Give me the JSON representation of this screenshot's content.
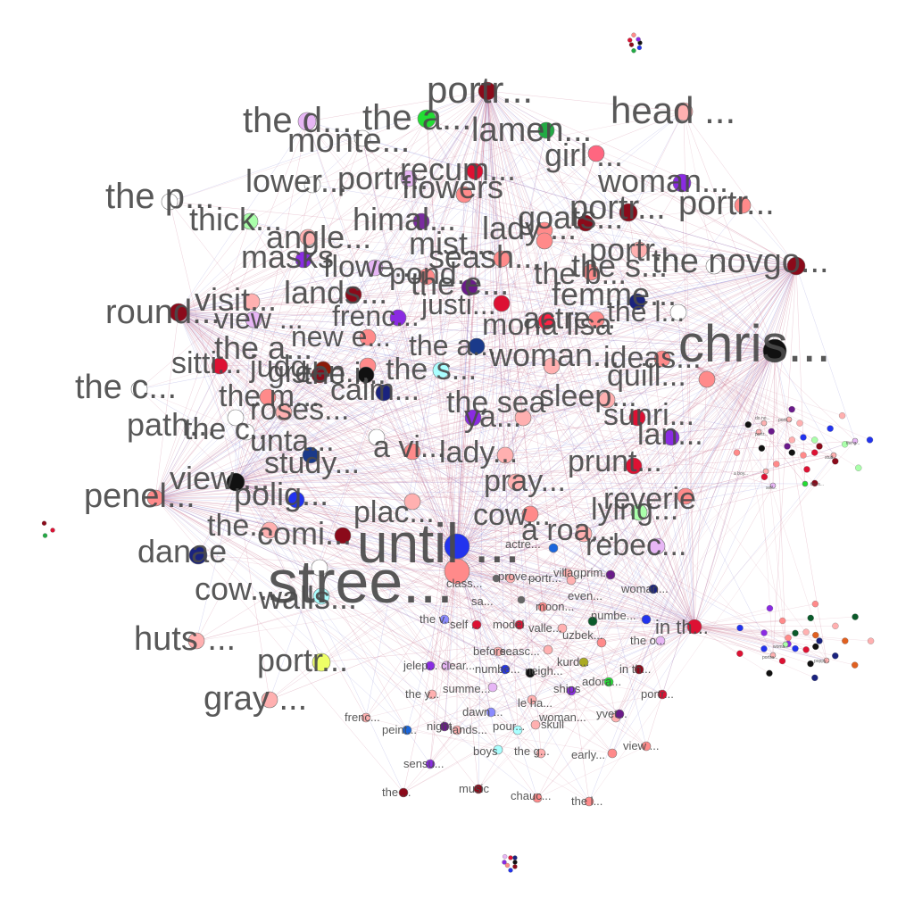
{
  "colors": {
    "edge_primary": "#c9738f",
    "edge_secondary": "#8a8ad6",
    "label": "#4a4a4a",
    "background": "#ffffff"
  },
  "graph": {
    "nodes": [
      {
        "label": "chris...",
        "size": "huge",
        "color": "#111111"
      },
      {
        "label": "stree...",
        "size": "huge",
        "color": "#ff8a8a"
      },
      {
        "label": "until ...",
        "size": "huge",
        "color": "#2233ee"
      },
      {
        "label": "portr...",
        "size": "large",
        "color": "#8b0a1a"
      },
      {
        "label": "head ...",
        "size": "large",
        "color": "#ffb0b0"
      },
      {
        "label": "the d...",
        "size": "large",
        "color": "#e7b6f5"
      },
      {
        "label": "the a...",
        "size": "large",
        "color": "#22dd33"
      },
      {
        "label": "lamen...",
        "size": "large",
        "color": "#22aa44"
      },
      {
        "label": "monte...",
        "size": "large",
        "color": "#ffffff"
      },
      {
        "label": "girl ...",
        "size": "large",
        "color": "#ff6680"
      },
      {
        "label": "recum...",
        "size": "large",
        "color": "#dd1133"
      },
      {
        "label": "lower...",
        "size": "large",
        "color": "#ffffff"
      },
      {
        "label": "portr...",
        "size": "large",
        "color": "#e7b6f5"
      },
      {
        "label": "flowers",
        "size": "large",
        "color": "#ff8a8a"
      },
      {
        "label": "woman...",
        "size": "large",
        "color": "#8a2be2"
      },
      {
        "label": "the p...",
        "size": "large",
        "color": "#ffffff"
      },
      {
        "label": "portr...",
        "size": "large",
        "color": "#8b0a1a"
      },
      {
        "label": "portr...",
        "size": "large",
        "color": "#ff8a8a"
      },
      {
        "label": "thick...",
        "size": "large",
        "color": "#aaffaa"
      },
      {
        "label": "himal...",
        "size": "large",
        "color": "#7a2ba0"
      },
      {
        "label": "lady ...",
        "size": "large",
        "color": "#ff8a8a"
      },
      {
        "label": "goats...",
        "size": "large",
        "color": "#8b0a1a"
      },
      {
        "label": "angle...",
        "size": "large",
        "color": "#ffb0b0"
      },
      {
        "label": "mist...",
        "size": "large",
        "color": "#ff8a8a"
      },
      {
        "label": "masks",
        "size": "large",
        "color": "#8a2be2"
      },
      {
        "label": "flowe...",
        "size": "large",
        "color": "#e7b6f5"
      },
      {
        "label": "seash...",
        "size": "large",
        "color": "#ff8a8a"
      },
      {
        "label": "portr...",
        "size": "large",
        "color": "#ffb0b0"
      },
      {
        "label": "the novgo...",
        "size": "large",
        "color": "#8b0a1a"
      },
      {
        "label": "the s...",
        "size": "large",
        "color": "#ffffff"
      },
      {
        "label": "pond...",
        "size": "large",
        "color": "#ff8a8a"
      },
      {
        "label": "the b...",
        "size": "large",
        "color": "#ff8a8a"
      },
      {
        "label": "visit...",
        "size": "large",
        "color": "#ffb0b0"
      },
      {
        "label": "lands...",
        "size": "large",
        "color": "#8b0a1a"
      },
      {
        "label": "the e...",
        "size": "large",
        "color": "#6a1a8a"
      },
      {
        "label": "femme...",
        "size": "large",
        "color": "#1a237e"
      },
      {
        "label": "round...",
        "size": "large",
        "color": "#8b0a1a"
      },
      {
        "label": "view ...",
        "size": "large",
        "color": "#e7b6f5"
      },
      {
        "label": "frenc...",
        "size": "large",
        "color": "#8a2be2"
      },
      {
        "label": "justi...",
        "size": "large",
        "color": "#dd1133"
      },
      {
        "label": "mona lisa",
        "size": "large",
        "color": "#ff8a8a"
      },
      {
        "label": "actre...",
        "size": "large",
        "color": "#ff2244"
      },
      {
        "label": "the l...",
        "size": "large",
        "color": "#ffffff"
      },
      {
        "label": "new e...",
        "size": "large",
        "color": "#ff8a8a"
      },
      {
        "label": "the a...",
        "size": "large",
        "color": "#1a3a8a"
      },
      {
        "label": "the a...",
        "size": "large",
        "color": "#ff8a8a"
      },
      {
        "label": "sitti...",
        "size": "large",
        "color": "#dd1133"
      },
      {
        "label": "judg...",
        "size": "large",
        "color": "#8b1a0a"
      },
      {
        "label": "the i...",
        "size": "large",
        "color": "#111111"
      },
      {
        "label": "the s...",
        "size": "large",
        "color": "#aaffff"
      },
      {
        "label": "woman...",
        "size": "large",
        "color": "#ffb0b0"
      },
      {
        "label": "ideas...",
        "size": "large",
        "color": "#ff8a8a"
      },
      {
        "label": "quill...",
        "size": "large",
        "color": "#ff8a8a"
      },
      {
        "label": "the c...",
        "size": "large",
        "color": "#ffffff"
      },
      {
        "label": "green...",
        "size": "large",
        "color": "#8b0a1a"
      },
      {
        "label": "calm...",
        "size": "large",
        "color": "#1a237e"
      },
      {
        "label": "sleep...",
        "size": "large",
        "color": "#ffb0b0"
      },
      {
        "label": "the m...",
        "size": "large",
        "color": "#ff8a8a"
      },
      {
        "label": "roses...",
        "size": "large",
        "color": "#ffb0b0"
      },
      {
        "label": "the sea",
        "size": "large",
        "color": "#ffb0b0"
      },
      {
        "label": "path...",
        "size": "large",
        "color": "#ffffff"
      },
      {
        "label": "the c...",
        "size": "large",
        "color": "#ffffff"
      },
      {
        "label": "sunri...",
        "size": "large",
        "color": "#dd1133"
      },
      {
        "label": "ya...",
        "size": "large",
        "color": "#8a2be2"
      },
      {
        "label": "lan...",
        "size": "large",
        "color": "#8a2be2"
      },
      {
        "label": "unta...",
        "size": "large",
        "color": "#ffffff"
      },
      {
        "label": "a vi...",
        "size": "large",
        "color": "#ff8a8a"
      },
      {
        "label": "lady...",
        "size": "large",
        "color": "#ffb0b0"
      },
      {
        "label": "prunt...",
        "size": "large",
        "color": "#dd1133"
      },
      {
        "label": "view ...",
        "size": "large",
        "color": "#111111"
      },
      {
        "label": "study...",
        "size": "large",
        "color": "#1a3a8a"
      },
      {
        "label": "pray...",
        "size": "large",
        "color": "#ffb0b0"
      },
      {
        "label": "reverie",
        "size": "large",
        "color": "#ff8a8a"
      },
      {
        "label": "penel...",
        "size": "large",
        "color": "#ff8a8a"
      },
      {
        "label": "polig...",
        "size": "large",
        "color": "#2233ee"
      },
      {
        "label": "plac...",
        "size": "large",
        "color": "#ffb0b0"
      },
      {
        "label": "cow...",
        "size": "large",
        "color": "#ff8a8a"
      },
      {
        "label": "lying...",
        "size": "large",
        "color": "#aaffaa"
      },
      {
        "label": "a roa...",
        "size": "large",
        "color": "#ffb0b0"
      },
      {
        "label": "the...",
        "size": "large",
        "color": "#ffb0b0"
      },
      {
        "label": "rebec...",
        "size": "large",
        "color": "#e7b6f5"
      },
      {
        "label": "danae",
        "size": "large",
        "color": "#1a237e"
      },
      {
        "label": "comi...",
        "size": "large",
        "color": "#8b0a1a"
      },
      {
        "label": "cow...",
        "size": "large",
        "color": "#ffffff"
      },
      {
        "label": "walls...",
        "size": "large",
        "color": "#aaffff"
      },
      {
        "label": "huts ...",
        "size": "large",
        "color": "#ffb0b0"
      },
      {
        "label": "portr...",
        "size": "large",
        "color": "#eeff66"
      },
      {
        "label": "gray ...",
        "size": "large",
        "color": "#ffb0b0"
      },
      {
        "label": "in th...",
        "size": "medium",
        "color": "#dd1133"
      },
      {
        "label": "class...",
        "size": "small",
        "color": "#666666"
      },
      {
        "label": "actre...",
        "size": "small",
        "color": "#1a66dd"
      },
      {
        "label": "villag...",
        "size": "small",
        "color": "#ffb0b0"
      },
      {
        "label": "prim...",
        "size": "small",
        "color": "#6a1a8a"
      },
      {
        "label": "prove...",
        "size": "small",
        "color": "#ffb0b0"
      },
      {
        "label": "portr...",
        "size": "small",
        "color": "#ffb0b0"
      },
      {
        "label": "woman...",
        "size": "small",
        "color": "#1a237e"
      },
      {
        "label": "sa...",
        "size": "small",
        "color": "#666666"
      },
      {
        "label": "moon...",
        "size": "small",
        "color": "#ff8a8a"
      },
      {
        "label": "even...",
        "size": "small",
        "color": "#0a5a2a"
      },
      {
        "label": "the v...",
        "size": "small",
        "color": "#8a8aff"
      },
      {
        "label": "self ...",
        "size": "small",
        "color": "#dd1133"
      },
      {
        "label": "model",
        "size": "small",
        "color": "#dd1133"
      },
      {
        "label": "valle...",
        "size": "small",
        "color": "#ffb0b0"
      },
      {
        "label": "numbe...",
        "size": "small",
        "color": "#2233ee"
      },
      {
        "label": "uzbek...",
        "size": "small",
        "color": "#ff8a8a"
      },
      {
        "label": "the o...",
        "size": "small",
        "color": "#e7b6f5"
      },
      {
        "label": "before...",
        "size": "small",
        "color": "#ffb0b0"
      },
      {
        "label": "seasc...",
        "size": "small",
        "color": "#ffb0b0"
      },
      {
        "label": "kurd...",
        "size": "small",
        "color": "#aaaa22"
      },
      {
        "label": "jelep...",
        "size": "small",
        "color": "#8a2be2"
      },
      {
        "label": "clear...",
        "size": "small",
        "color": "#e7b6f5"
      },
      {
        "label": "numbe...",
        "size": "small",
        "color": "#2233ee"
      },
      {
        "label": "neigh...",
        "size": "small",
        "color": "#111111"
      },
      {
        "label": "adora...",
        "size": "small",
        "color": "#22dd33"
      },
      {
        "label": "in th...",
        "size": "small",
        "color": "#8b0a1a"
      },
      {
        "label": "the y...",
        "size": "small",
        "color": "#ffb0b0"
      },
      {
        "label": "summe...",
        "size": "small",
        "color": "#e7b6f5"
      },
      {
        "label": "le ha...",
        "size": "small",
        "color": "#ffb0b0"
      },
      {
        "label": "ships",
        "size": "small",
        "color": "#8a2be2"
      },
      {
        "label": "portr...",
        "size": "small",
        "color": "#dd1133"
      },
      {
        "label": "dawn ...",
        "size": "small",
        "color": "#8a8aff"
      },
      {
        "label": "woman...",
        "size": "small",
        "color": "#ffb0b0"
      },
      {
        "label": "yvet...",
        "size": "small",
        "color": "#6a1a8a"
      },
      {
        "label": "frenc...",
        "size": "small",
        "color": "#ffb0b0"
      },
      {
        "label": "peint...",
        "size": "small",
        "color": "#1a66dd"
      },
      {
        "label": "night",
        "size": "small",
        "color": "#6a1a8a"
      },
      {
        "label": "lands...",
        "size": "small",
        "color": "#ffb0b0"
      },
      {
        "label": "pour...",
        "size": "small",
        "color": "#aaffff"
      },
      {
        "label": "skull",
        "size": "small",
        "color": "#ffb0b0"
      },
      {
        "label": "view ...",
        "size": "small",
        "color": "#ff8a8a"
      },
      {
        "label": "boys",
        "size": "small",
        "color": "#aaffff"
      },
      {
        "label": "the g...",
        "size": "small",
        "color": "#ffb0b0"
      },
      {
        "label": "early...",
        "size": "small",
        "color": "#ff8a8a"
      },
      {
        "label": "sensu...",
        "size": "small",
        "color": "#8a2be2"
      },
      {
        "label": "the ...",
        "size": "small",
        "color": "#8b0a1a"
      },
      {
        "label": "music",
        "size": "small",
        "color": "#8b0a1a"
      },
      {
        "label": "chauc...",
        "size": "small",
        "color": "#ff8a8a"
      },
      {
        "label": "the l...",
        "size": "small",
        "color": "#ff8a8a"
      },
      {
        "label": "portr...",
        "size": "tiny",
        "color": "#ffb0b0"
      },
      {
        "label": "do no...",
        "size": "tiny",
        "color": "#ffb0b0"
      },
      {
        "label": "portr...",
        "size": "tiny",
        "color": "#ffb0b0"
      },
      {
        "label": "a boy...",
        "size": "tiny",
        "color": "#ffb0b0"
      },
      {
        "label": "self...",
        "size": "tiny",
        "color": "#e7b6f5"
      },
      {
        "label": "the g...",
        "size": "tiny",
        "color": "#e7b6f5"
      },
      {
        "label": "stud...",
        "size": "tiny",
        "color": "#ffb0b0"
      },
      {
        "label": "the s...",
        "size": "tiny",
        "color": "#22dd33"
      },
      {
        "label": "woma...",
        "size": "tiny",
        "color": "#aaffaa"
      },
      {
        "label": "portra...",
        "size": "tiny",
        "color": "#ffb0b0"
      },
      {
        "label": "poppy...",
        "size": "tiny",
        "color": "#ffb0b0"
      }
    ]
  }
}
